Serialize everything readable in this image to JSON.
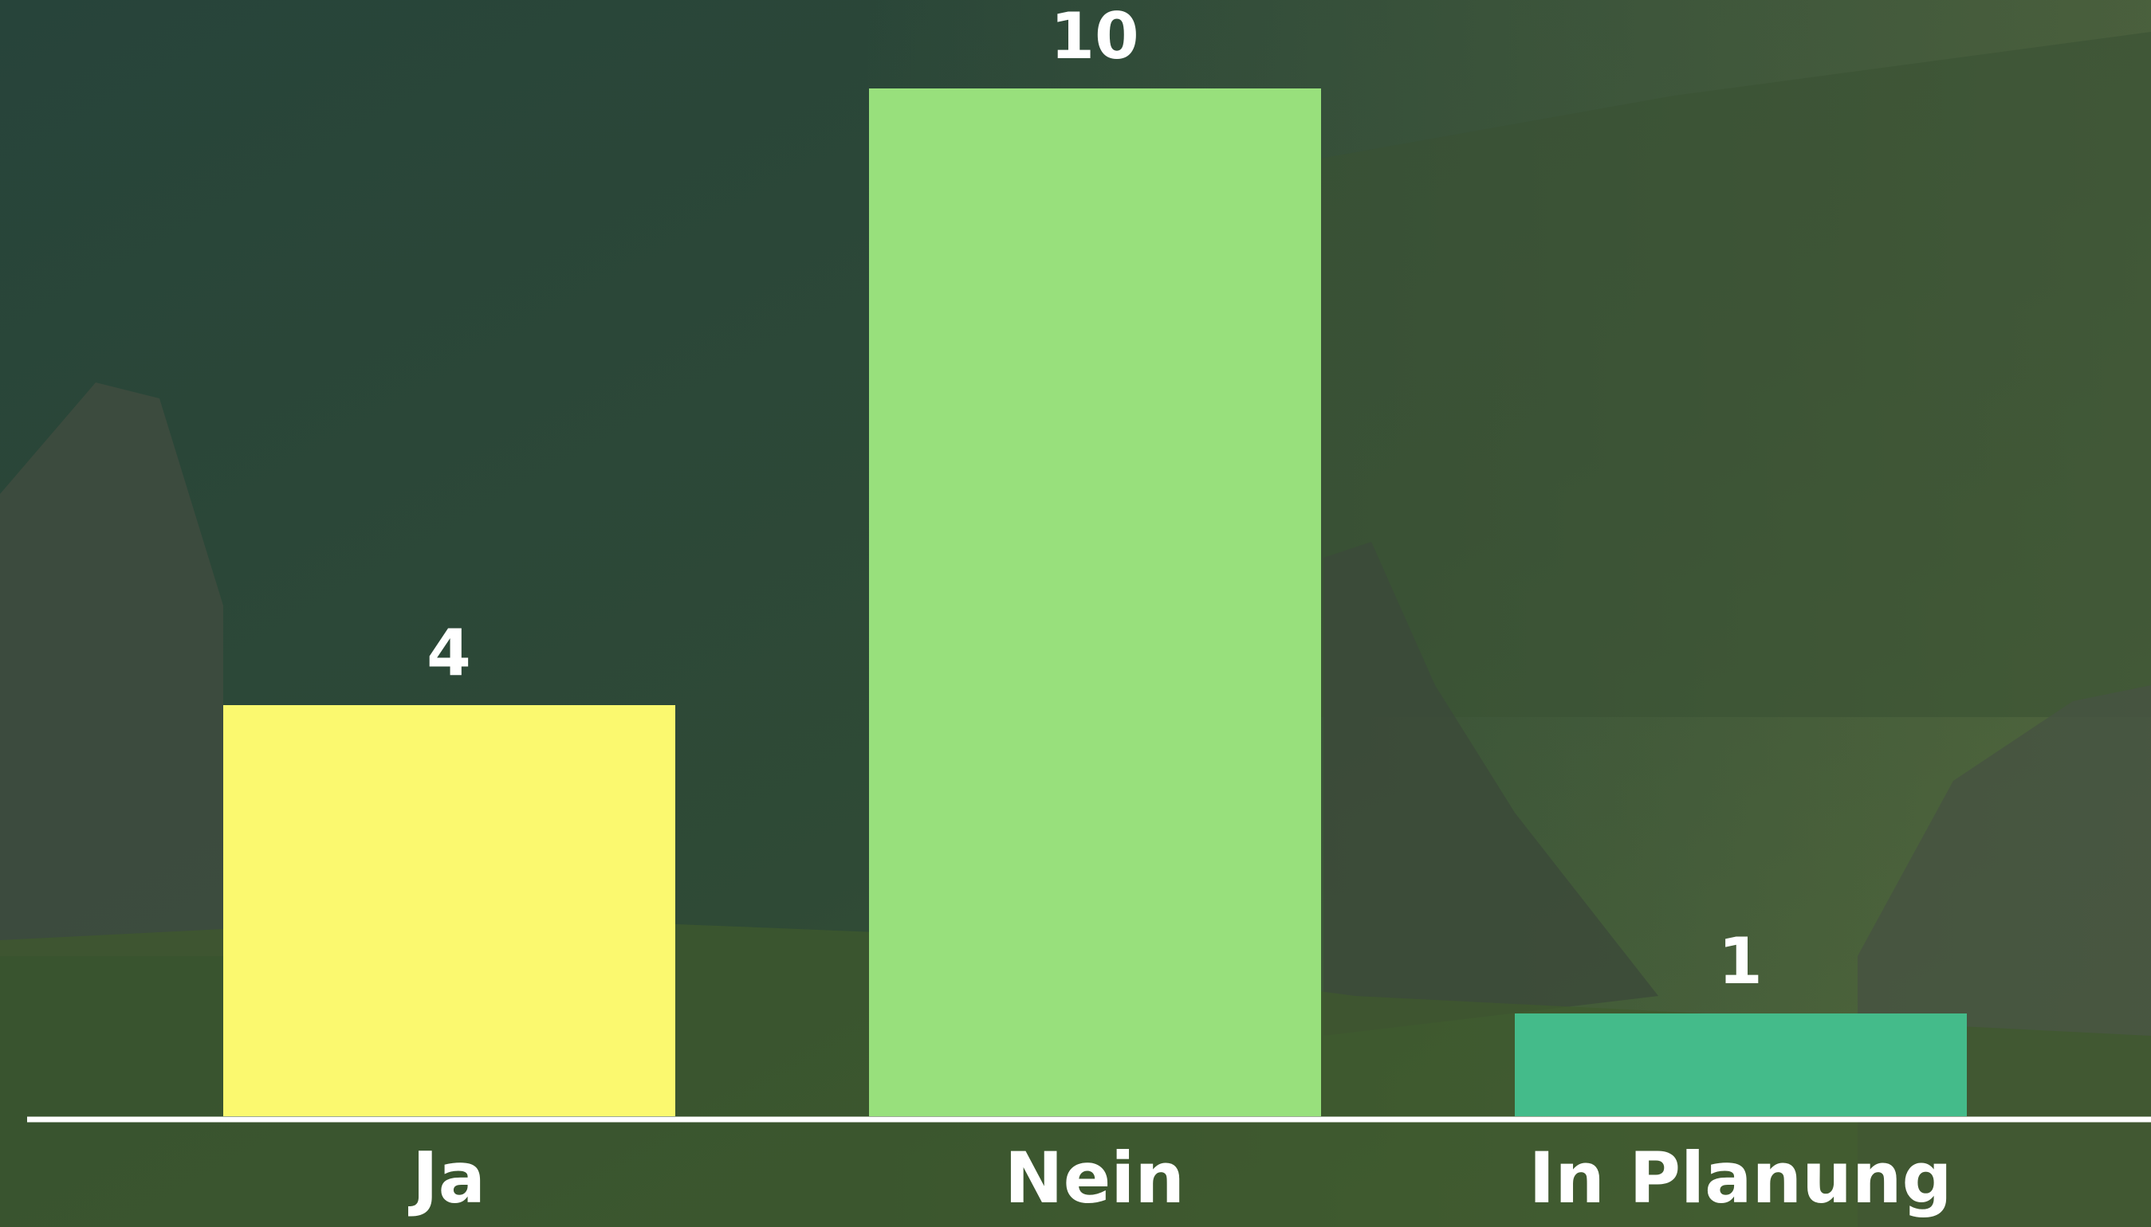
{
  "chart_data": {
    "type": "bar",
    "categories": [
      "Ja",
      "Nein",
      "In Planung"
    ],
    "series": [
      {
        "values": [
          4,
          10,
          1
        ],
        "colors": [
          "#fbf96f",
          "#98e07c",
          "#44bb8a"
        ]
      }
    ]
  }
}
